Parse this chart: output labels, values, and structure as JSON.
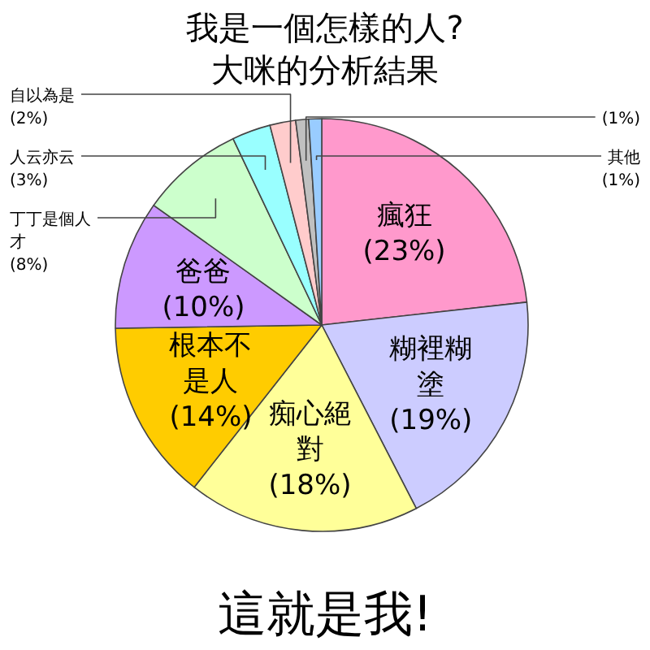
{
  "chart_data": {
    "type": "pie",
    "title": "我是一個怎樣的人?",
    "subtitle": "大咪的分析結果",
    "categories": [
      "瘋狂",
      "糊裡糊塗",
      "痴心絕對",
      "根本不是人",
      "爸爸",
      "丁丁是個人才",
      "人云亦云",
      "自以為是",
      null,
      "其他"
    ],
    "values": [
      23,
      19,
      18,
      14,
      10,
      8,
      3,
      2,
      1,
      1
    ],
    "colors": [
      "#ff99cc",
      "#ccccff",
      "#ffff99",
      "#ffcc00",
      "#cc99ff",
      "#ccffcc",
      "#99ffff",
      "#ffcccc",
      "#c0c0c0",
      "#99ccff"
    ],
    "value_labels": [
      "(23%)",
      "(19%)",
      "(18%)",
      "(14%)",
      "(10%)",
      "(8%)",
      "(3%)",
      "(2%)",
      "(1%)",
      "(1%)"
    ],
    "annotations": [
      "這就是我!"
    ]
  }
}
